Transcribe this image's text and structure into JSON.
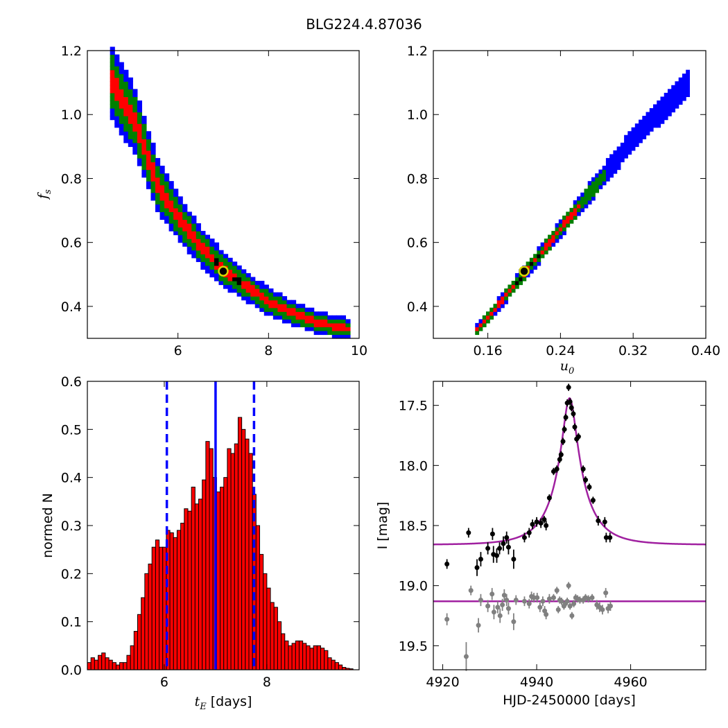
{
  "title": "BLG224.4.87036",
  "colors": {
    "blue": "#0000ff",
    "green": "#008000",
    "red": "#ff0000",
    "black": "#000000",
    "model": "#a020a0",
    "resid": "#808080",
    "hist_fill": "#ff0000",
    "marker_ring": "#d8d800"
  },
  "chart_data": [
    {
      "id": "fs-vs-tE",
      "type": "heatmap",
      "ylabel": "f_s",
      "ylabel_main": "f",
      "ylabel_sub": "s",
      "xlim": [
        4.0,
        10.0
      ],
      "ylim": [
        0.3,
        1.2
      ],
      "xticks": [
        6,
        8,
        10
      ],
      "yticks": [
        0.4,
        0.6,
        0.8,
        1.0,
        1.2
      ],
      "ytick_labels": [
        "0.4",
        "0.6",
        "0.8",
        "1.0",
        "1.2"
      ],
      "best_fit": {
        "x": 7.0,
        "y": 0.51
      },
      "ridge": [
        [
          4.5,
          1.1
        ],
        [
          5.0,
          0.98
        ],
        [
          5.5,
          0.78
        ],
        [
          6.0,
          0.67
        ],
        [
          6.5,
          0.58
        ],
        [
          7.0,
          0.51
        ],
        [
          7.5,
          0.46
        ],
        [
          8.0,
          0.41
        ],
        [
          8.5,
          0.38
        ],
        [
          9.0,
          0.35
        ],
        [
          9.7,
          0.33
        ]
      ]
    },
    {
      "id": "fs-vs-u0",
      "type": "heatmap",
      "xlabel": "u_0",
      "xlabel_main": "u",
      "xlabel_sub": "0",
      "xlim": [
        0.1,
        0.4
      ],
      "ylim": [
        0.3,
        1.2
      ],
      "xticks": [
        0.16,
        0.24,
        0.32,
        0.4
      ],
      "xtick_labels": [
        "0.16",
        "0.24",
        "0.32",
        "0.40"
      ],
      "yticks": [
        0.4,
        0.6,
        0.8,
        1.0,
        1.2
      ],
      "ytick_labels": [
        "0.4",
        "0.6",
        "0.8",
        "1.0",
        "1.2"
      ],
      "best_fit": {
        "x": 0.2,
        "y": 0.51
      },
      "ridge": [
        [
          0.146,
          0.325
        ],
        [
          0.2,
          0.51
        ],
        [
          0.26,
          0.72
        ],
        [
          0.32,
          0.93
        ],
        [
          0.38,
          1.1
        ]
      ]
    },
    {
      "id": "tE-histogram",
      "type": "bar",
      "xlabel": "t_E  [days]",
      "xlabel_main": "t",
      "xlabel_sub": "E",
      "xlabel_rest": "  [days]",
      "ylabel": "normed N",
      "xlim": [
        4.5,
        9.8
      ],
      "ylim": [
        0.0,
        0.6
      ],
      "xticks": [
        6,
        8
      ],
      "yticks": [
        0.0,
        0.1,
        0.2,
        0.3,
        0.4,
        0.5,
        0.6
      ],
      "ytick_labels": [
        "0.0",
        "0.1",
        "0.2",
        "0.3",
        "0.4",
        "0.5",
        "0.6"
      ],
      "bin_start": 4.5,
      "bin_width": 0.07,
      "values": [
        0.015,
        0.025,
        0.02,
        0.03,
        0.035,
        0.025,
        0.02,
        0.015,
        0.01,
        0.015,
        0.015,
        0.03,
        0.05,
        0.08,
        0.115,
        0.15,
        0.2,
        0.22,
        0.255,
        0.27,
        0.255,
        0.255,
        0.29,
        0.285,
        0.275,
        0.29,
        0.305,
        0.335,
        0.33,
        0.38,
        0.345,
        0.355,
        0.395,
        0.475,
        0.46,
        0.4,
        0.37,
        0.38,
        0.4,
        0.46,
        0.45,
        0.47,
        0.525,
        0.5,
        0.48,
        0.45,
        0.365,
        0.3,
        0.24,
        0.2,
        0.17,
        0.14,
        0.13,
        0.1,
        0.075,
        0.06,
        0.05,
        0.055,
        0.06,
        0.06,
        0.055,
        0.05,
        0.045,
        0.05,
        0.05,
        0.045,
        0.04,
        0.025,
        0.02,
        0.015,
        0.01,
        0.005,
        0.003,
        0.002
      ],
      "vlines": [
        {
          "x": 6.05,
          "style": "dashed"
        },
        {
          "x": 7.0,
          "style": "solid"
        },
        {
          "x": 7.75,
          "style": "dashed"
        }
      ]
    },
    {
      "id": "lightcurve",
      "type": "scatter",
      "xlabel": "HJD-2450000 [days]",
      "ylabel": "I [mag]",
      "xlim": [
        4918.0,
        4976.0
      ],
      "ylim": [
        19.7,
        17.3
      ],
      "xticks": [
        4920,
        4940,
        4960
      ],
      "yticks": [
        17.5,
        18.0,
        18.5,
        19.0,
        19.5
      ],
      "ytick_labels": [
        "17.5",
        "18.0",
        "18.5",
        "19.0",
        "19.5"
      ],
      "model": {
        "t0": 4947.0,
        "u0": 0.2,
        "tE": 7.0,
        "baseline": 18.66,
        "peak": 17.44
      },
      "resid_baseline": 19.13,
      "points": [
        [
          4920.9,
          18.82,
          0.04
        ],
        [
          4925.5,
          18.56,
          0.04
        ],
        [
          4927.3,
          18.85,
          0.07
        ],
        [
          4928.1,
          18.78,
          0.06
        ],
        [
          4929.6,
          18.69,
          0.05
        ],
        [
          4930.6,
          18.57,
          0.05
        ],
        [
          4930.8,
          18.74,
          0.07
        ],
        [
          4931.5,
          18.75,
          0.06
        ],
        [
          4932.1,
          18.69,
          0.05
        ],
        [
          4932.9,
          18.65,
          0.06
        ],
        [
          4933.6,
          18.6,
          0.05
        ],
        [
          4934.0,
          18.68,
          0.06
        ],
        [
          4935.1,
          18.78,
          0.08
        ],
        [
          4937.4,
          18.6,
          0.04
        ],
        [
          4938.4,
          18.56,
          0.04
        ],
        [
          4939.1,
          18.49,
          0.04
        ],
        [
          4940.0,
          18.47,
          0.04
        ],
        [
          4940.9,
          18.48,
          0.04
        ],
        [
          4941.6,
          18.45,
          0.03
        ],
        [
          4942.0,
          18.5,
          0.04
        ],
        [
          4942.7,
          18.27,
          0.03
        ],
        [
          4943.6,
          18.05,
          0.03
        ],
        [
          4944.3,
          18.03,
          0.03
        ],
        [
          4944.9,
          17.95,
          0.03
        ],
        [
          4945.2,
          17.91,
          0.03
        ],
        [
          4945.6,
          17.8,
          0.03
        ],
        [
          4945.9,
          17.7,
          0.03
        ],
        [
          4946.2,
          17.6,
          0.03
        ],
        [
          4946.5,
          17.48,
          0.03
        ],
        [
          4946.8,
          17.35,
          0.03
        ],
        [
          4947.1,
          17.47,
          0.03
        ],
        [
          4947.4,
          17.52,
          0.03
        ],
        [
          4947.8,
          17.57,
          0.03
        ],
        [
          4948.1,
          17.68,
          0.03
        ],
        [
          4948.5,
          17.78,
          0.03
        ],
        [
          4948.9,
          17.76,
          0.03
        ],
        [
          4949.9,
          18.03,
          0.03
        ],
        [
          4950.4,
          18.12,
          0.03
        ],
        [
          4951.2,
          18.18,
          0.03
        ],
        [
          4952.0,
          18.29,
          0.03
        ],
        [
          4953.1,
          18.46,
          0.04
        ],
        [
          4954.5,
          18.47,
          0.04
        ],
        [
          4954.8,
          18.6,
          0.04
        ],
        [
          4955.6,
          18.6,
          0.04
        ]
      ],
      "resid_points": [
        [
          4920.9,
          19.28,
          0.05
        ],
        [
          4925.0,
          19.59,
          0.12
        ],
        [
          4926.0,
          19.04,
          0.04
        ],
        [
          4927.6,
          19.33,
          0.06
        ],
        [
          4928.1,
          19.12,
          0.05
        ],
        [
          4929.6,
          19.17,
          0.05
        ],
        [
          4930.5,
          19.07,
          0.05
        ],
        [
          4930.9,
          19.22,
          0.06
        ],
        [
          4931.7,
          19.18,
          0.05
        ],
        [
          4932.2,
          19.25,
          0.06
        ],
        [
          4932.7,
          19.16,
          0.05
        ],
        [
          4933.1,
          19.08,
          0.05
        ],
        [
          4933.6,
          19.12,
          0.05
        ],
        [
          4934.0,
          19.19,
          0.05
        ],
        [
          4935.1,
          19.3,
          0.07
        ],
        [
          4935.6,
          19.12,
          0.04
        ],
        [
          4937.4,
          19.13,
          0.04
        ],
        [
          4938.4,
          19.15,
          0.04
        ],
        [
          4938.9,
          19.09,
          0.04
        ],
        [
          4939.4,
          19.1,
          0.04
        ],
        [
          4940.1,
          19.1,
          0.04
        ],
        [
          4940.7,
          19.18,
          0.04
        ],
        [
          4941.3,
          19.13,
          0.04
        ],
        [
          4941.7,
          19.21,
          0.04
        ],
        [
          4942.0,
          19.24,
          0.04
        ],
        [
          4942.7,
          19.11,
          0.04
        ],
        [
          4943.6,
          19.1,
          0.03
        ],
        [
          4944.3,
          19.04,
          0.03
        ],
        [
          4944.6,
          19.2,
          0.03
        ],
        [
          4944.9,
          19.12,
          0.03
        ],
        [
          4945.3,
          19.13,
          0.03
        ],
        [
          4945.8,
          19.17,
          0.03
        ],
        [
          4946.1,
          19.15,
          0.03
        ],
        [
          4946.5,
          19.13,
          0.03
        ],
        [
          4946.8,
          19.0,
          0.03
        ],
        [
          4947.1,
          19.17,
          0.03
        ],
        [
          4947.5,
          19.25,
          0.03
        ],
        [
          4947.9,
          19.15,
          0.03
        ],
        [
          4948.3,
          19.1,
          0.03
        ],
        [
          4948.7,
          19.11,
          0.03
        ],
        [
          4949.2,
          19.12,
          0.03
        ],
        [
          4949.9,
          19.12,
          0.03
        ],
        [
          4950.4,
          19.1,
          0.03
        ],
        [
          4951.0,
          19.11,
          0.03
        ],
        [
          4951.8,
          19.1,
          0.03
        ],
        [
          4952.8,
          19.16,
          0.04
        ],
        [
          4953.4,
          19.18,
          0.04
        ],
        [
          4954.0,
          19.2,
          0.04
        ],
        [
          4954.7,
          19.06,
          0.04
        ],
        [
          4955.2,
          19.19,
          0.04
        ],
        [
          4955.7,
          19.17,
          0.04
        ]
      ]
    }
  ]
}
